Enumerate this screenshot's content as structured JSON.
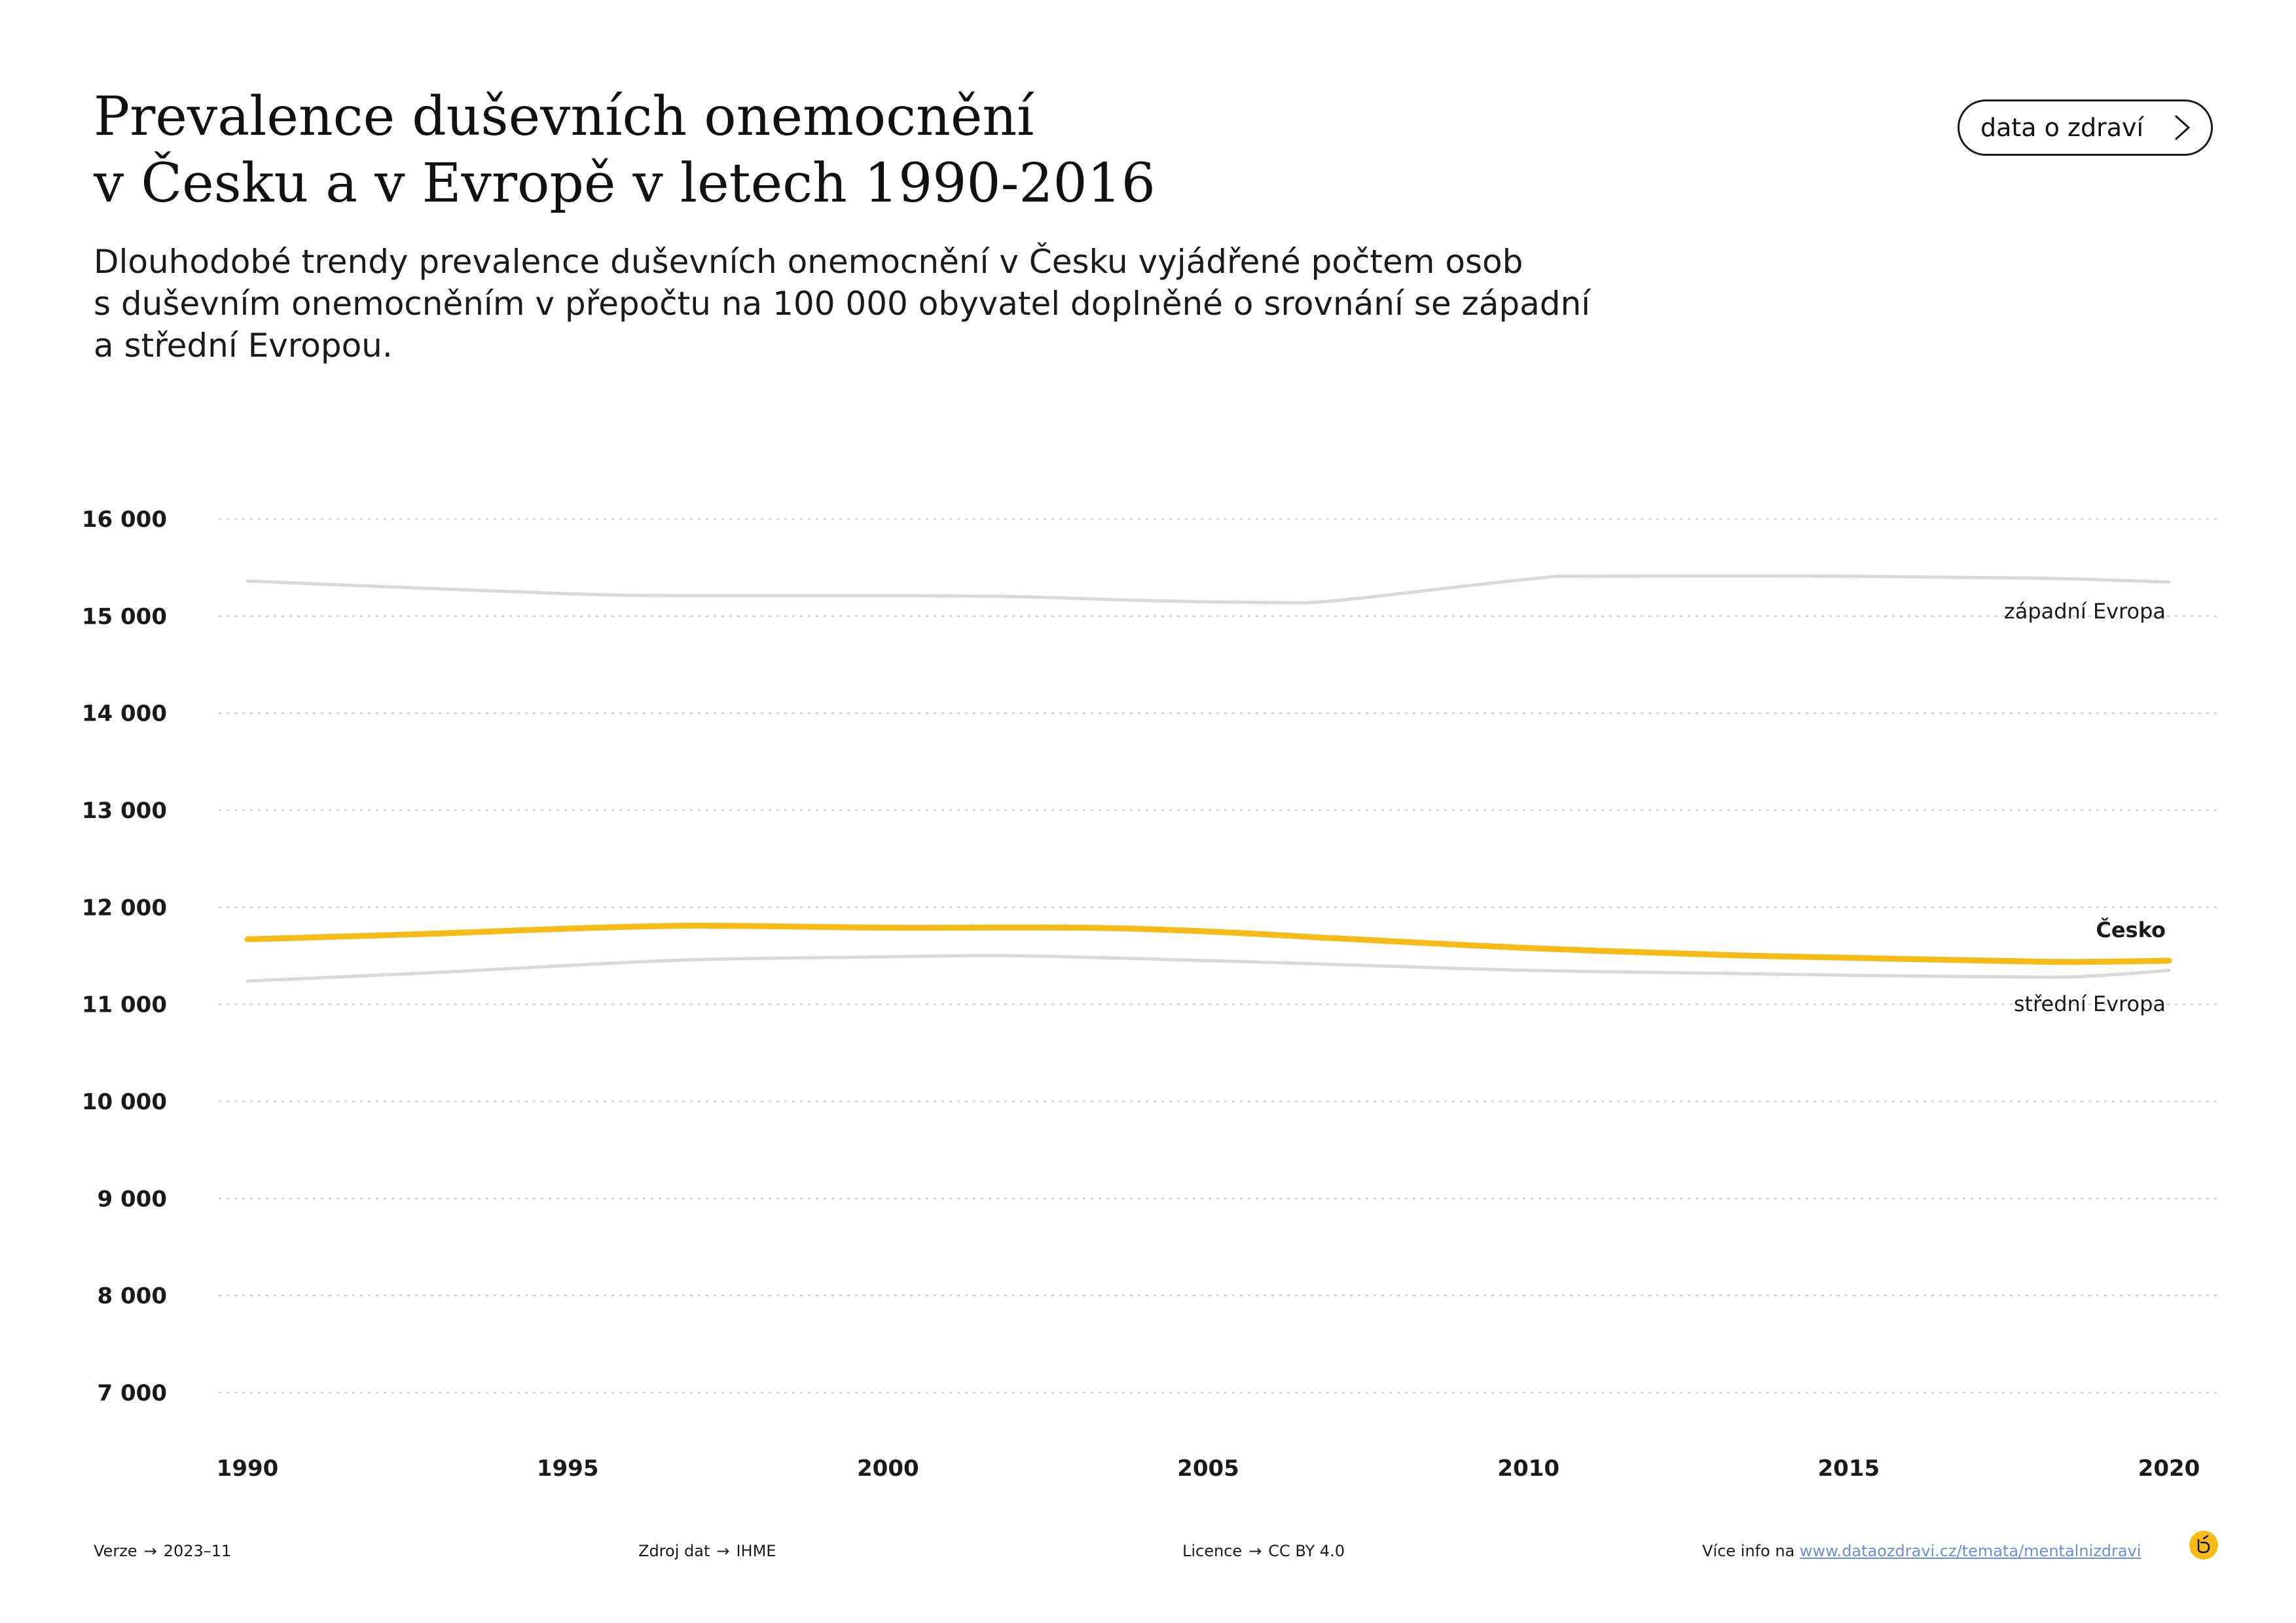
{
  "header": {
    "title_line1": "Prevalence duševních onemocnění",
    "title_line2": "v Česku a v Evropě v letech 1990-2016",
    "subtitle_line1": "Dlouhodobé trendy prevalence duševních onemocnění v Česku vyjádřené počtem osob",
    "subtitle_line2": "s duševním onemocněním v přepočtu na 100 000 obyvatel doplněné o srovnání se západní",
    "subtitle_line3": "a střední Evropou.",
    "button_label": "data o zdraví",
    "button_icon": "chevron-right-icon"
  },
  "chart_data": {
    "type": "line",
    "ylim": [
      7000,
      16000
    ],
    "xlim": [
      1990,
      2020
    ],
    "y_ticks": [
      7000,
      8000,
      9000,
      10000,
      11000,
      12000,
      13000,
      14000,
      15000,
      16000
    ],
    "y_tick_labels": [
      "7 000",
      "8 000",
      "9 000",
      "10 000",
      "11 000",
      "12 000",
      "13 000",
      "14 000",
      "15 000",
      "16 000"
    ],
    "x_ticks": [
      1990,
      1995,
      2000,
      2005,
      2010,
      2015,
      2020
    ],
    "x_tick_labels": [
      "1990",
      "1995",
      "2000",
      "2005",
      "2010",
      "2015",
      "2020"
    ],
    "grid": "horizontal dotted",
    "series": [
      {
        "name": "západní Evropa",
        "color": "#d9d9d9",
        "x": [
          1990,
          1995,
          1997,
          2000,
          2002,
          2004,
          2006,
          2007,
          2010,
          2011,
          2015,
          2018,
          2020
        ],
        "y": [
          15360,
          15230,
          15210,
          15210,
          15200,
          15160,
          15140,
          15160,
          15380,
          15410,
          15410,
          15390,
          15350
        ]
      },
      {
        "name": "Česko",
        "color": "#f6bb17",
        "x": [
          1990,
          1993,
          1995,
          1997,
          2000,
          2003,
          2005,
          2007,
          2010,
          2013,
          2015,
          2018,
          2019,
          2020
        ],
        "y": [
          11670,
          11730,
          11780,
          11810,
          11790,
          11790,
          11750,
          11680,
          11580,
          11510,
          11480,
          11440,
          11440,
          11450
        ]
      },
      {
        "name": "střední Evropa",
        "color": "#d9d9d9",
        "x": [
          1990,
          1993,
          1995,
          1997,
          2000,
          2002,
          2005,
          2007,
          2010,
          2013,
          2015,
          2018,
          2019,
          2020
        ],
        "y": [
          11240,
          11330,
          11400,
          11460,
          11490,
          11500,
          11450,
          11410,
          11350,
          11320,
          11300,
          11280,
          11300,
          11350
        ]
      }
    ]
  },
  "footer": {
    "version_label": "Verze",
    "version_value": "2023–11",
    "source_label": "Zdroj dat",
    "source_value": "IHME",
    "license_label": "Licence",
    "license_value": "CC BY 4.0",
    "more_info_label": "Více info na",
    "more_info_link": "www.dataozdravi.cz/temata/mentalnizdravi",
    "arrow": "→",
    "logo_icon": "dataozdravi-logo-icon"
  }
}
